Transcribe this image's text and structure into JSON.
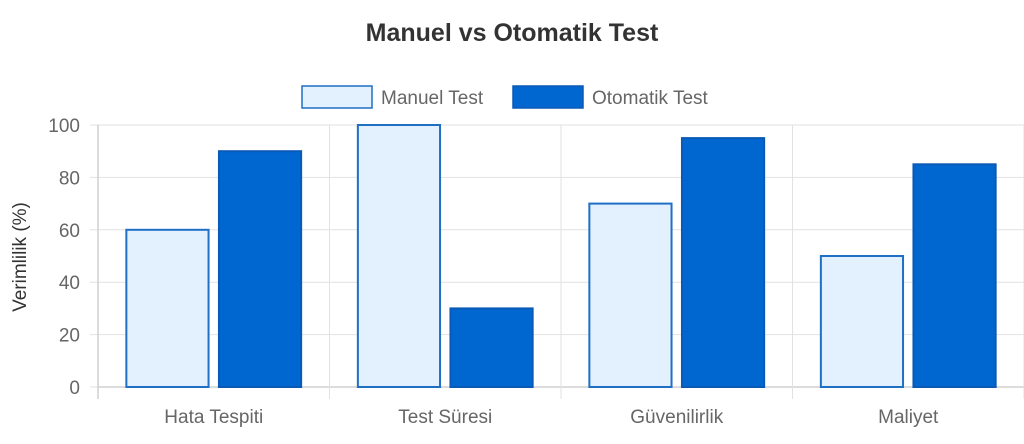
{
  "chart_data": {
    "type": "bar",
    "title": "Manuel vs Otomatik Test",
    "xlabel": "",
    "ylabel": "Verimlilik (%)",
    "ylim": [
      0,
      100
    ],
    "yticks": [
      "0",
      "20",
      "40",
      "60",
      "80",
      "100"
    ],
    "categories": [
      "Hata Tespiti",
      "Test Süresi",
      "Güvenilirlik",
      "Maliyet"
    ],
    "series": [
      {
        "name": "Manuel Test",
        "values": [
          60,
          100,
          70,
          50
        ],
        "fill": "#e3f0fd",
        "stroke": "#1f6fc5"
      },
      {
        "name": "Otomatik Test",
        "values": [
          90,
          30,
          95,
          85
        ],
        "fill": "#0066d0",
        "stroke": "#0a5ab5"
      }
    ],
    "grid": true,
    "legend_position": "top-center"
  }
}
